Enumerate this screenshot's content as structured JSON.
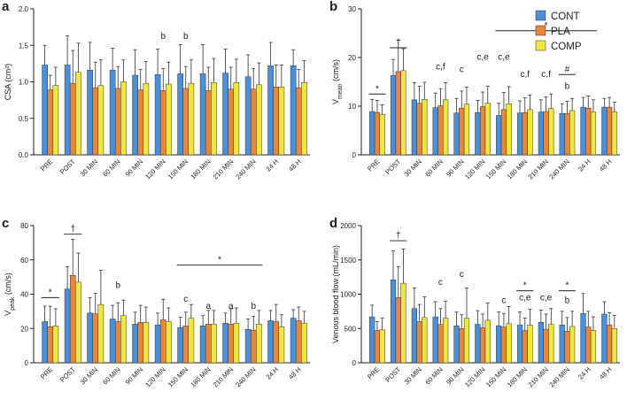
{
  "chart_data": [
    {
      "type": "bar",
      "panel": "a",
      "ylabel": {
        "text": "CSA (cm²)"
      },
      "categories": [
        "PRE",
        "POST",
        "30 MIN",
        "60 MIN",
        "90 MIN",
        "120 MIN",
        "150 MIN",
        "180 MIN",
        "210 MIN",
        "240 MIN",
        "24 H",
        "48 H"
      ],
      "ylim": [
        0,
        2
      ],
      "yticks": [
        {
          "value": 0,
          "label": "0.0"
        },
        {
          "value": 0.5,
          "label": "0.5"
        },
        {
          "value": 1,
          "label": "1.0"
        },
        {
          "value": 1.5,
          "label": "1.5"
        },
        {
          "value": 2,
          "label": "2.0"
        }
      ],
      "series": [
        {
          "name": "CONT",
          "color": "#4a90d9",
          "values": [
            1.23,
            1.23,
            1.16,
            1.16,
            1.09,
            1.1,
            1.11,
            1.11,
            1.12,
            1.07,
            1.22,
            1.22
          ],
          "error": [
            0.27,
            0.4,
            0.38,
            0.3,
            0.35,
            0.35,
            0.4,
            0.4,
            0.33,
            0.3,
            0.32,
            0.22
          ]
        },
        {
          "name": "PLA",
          "color": "#e8863a",
          "values": [
            0.89,
            0.98,
            0.92,
            0.91,
            0.89,
            0.88,
            0.91,
            0.88,
            0.9,
            0.9,
            0.93,
            0.92
          ],
          "error": [
            0.2,
            0.45,
            0.35,
            0.3,
            0.28,
            0.3,
            0.3,
            0.32,
            0.3,
            0.28,
            0.3,
            0.25
          ]
        },
        {
          "name": "COMP",
          "color": "#f0e640",
          "values": [
            0.95,
            1.13,
            0.95,
            1.0,
            0.98,
            0.97,
            0.98,
            0.99,
            0.99,
            0.96,
            0.93,
            0.99
          ],
          "error": [
            0.25,
            0.4,
            0.35,
            0.3,
            0.3,
            0.3,
            0.32,
            0.33,
            0.32,
            0.3,
            0.3,
            0.3
          ]
        }
      ],
      "annotations": [
        "b",
        "b"
      ]
    },
    {
      "type": "bar",
      "panel": "b",
      "ylabel": {
        "text": "V",
        "sub": "mean",
        "suffix": " (cm/s)"
      },
      "legend": "upper right",
      "categories": [
        "PRE",
        "POST",
        "30 MIN",
        "60 MIN",
        "90 MIN",
        "120 MIN",
        "150 MIN",
        "180 MIN",
        "210 MIN",
        "240 MIN",
        "24 H",
        "48 H"
      ],
      "ylim": [
        0,
        30
      ],
      "yticks": [
        0,
        10,
        20,
        30
      ],
      "series": [
        {
          "name": "CONT",
          "color": "#4a90d9",
          "values": [
            8.9,
            16.3,
            11.3,
            9.7,
            8.6,
            8.7,
            8.1,
            8.6,
            8.8,
            8.5,
            9.8,
            9.8
          ],
          "error": [
            2.5,
            3.3,
            3.5,
            3,
            3,
            2.5,
            2.5,
            2.5,
            2.5,
            2,
            2,
            1.8
          ]
        },
        {
          "name": "PLA",
          "color": "#e8863a",
          "values": [
            8.7,
            17.1,
            10.6,
            10.1,
            9.6,
            9.9,
            9.3,
            8.7,
            8.9,
            8.5,
            9.6,
            9.8
          ],
          "error": [
            2.5,
            6.5,
            3.5,
            3.5,
            3.5,
            3,
            3.5,
            3,
            3,
            2.5,
            2.5,
            2
          ]
        },
        {
          "name": "COMP",
          "color": "#f0e640",
          "values": [
            8.3,
            17.3,
            11.4,
            11.3,
            10.4,
            10.6,
            10.5,
            9.3,
            9.5,
            9.1,
            8.8,
            8.8
          ],
          "error": [
            2,
            4.5,
            3.5,
            3.5,
            3.5,
            3.5,
            3.5,
            3,
            3,
            2.5,
            2.5,
            2
          ]
        }
      ],
      "annotations": [
        "*",
        "†",
        "c,f",
        "c",
        "c,e",
        "c,e",
        "c,f",
        "c,f",
        "b",
        "#",
        "*"
      ]
    },
    {
      "type": "bar",
      "panel": "c",
      "ylabel": {
        "text": "V",
        "sub": "peak",
        "suffix": " (cm/s)"
      },
      "categories": [
        "PRE",
        "POST",
        "30 MIN",
        "60 MIN",
        "90 MIN",
        "120 MIN",
        "150 MIN",
        "180 MIN",
        "210 MIN",
        "240 MIN",
        "24 H",
        "48 H"
      ],
      "ylim": [
        0,
        80
      ],
      "yticks": [
        0,
        20,
        40,
        60,
        80
      ],
      "series": [
        {
          "name": "CONT",
          "color": "#4a90d9",
          "values": [
            24,
            43,
            29,
            25.5,
            22.5,
            22,
            20.5,
            21.5,
            23,
            19.5,
            24.5,
            26
          ],
          "error": [
            9,
            13,
            9,
            8,
            7,
            7,
            6,
            6,
            6,
            6,
            6,
            5
          ]
        },
        {
          "name": "PLA",
          "color": "#e8863a",
          "values": [
            21,
            51,
            28.5,
            24,
            23.5,
            25,
            21.5,
            22.5,
            22.5,
            19,
            24,
            24.5
          ],
          "error": [
            12,
            21,
            12,
            11,
            10,
            12,
            8,
            8,
            9,
            8,
            10,
            8
          ]
        },
        {
          "name": "COMP",
          "color": "#f0e640",
          "values": [
            21.5,
            47,
            34,
            27.5,
            23.5,
            24,
            26,
            22.5,
            23,
            22.5,
            21,
            23
          ],
          "error": [
            10,
            17,
            20,
            9,
            9,
            8,
            8,
            8,
            9,
            8,
            7,
            7
          ]
        }
      ],
      "annotations": [
        "*",
        "†",
        "b",
        "c",
        "a",
        "a",
        "b",
        "*"
      ]
    },
    {
      "type": "bar",
      "panel": "d",
      "ylabel": {
        "text": "Venous blood flow (mL/min)"
      },
      "categories": [
        "PRE",
        "POST",
        "30 MIN",
        "60 MIN",
        "90 MIN",
        "120 MIN",
        "150 MIN",
        "180 MIN",
        "210 MIN",
        "240 MIN",
        "24 H",
        "48 H"
      ],
      "ylim": [
        0,
        2000
      ],
      "yticks": [
        0,
        500,
        1000,
        1500,
        2000
      ],
      "series": [
        {
          "name": "CONT",
          "color": "#4a90d9",
          "values": [
            670,
            1210,
            790,
            670,
            540,
            560,
            540,
            550,
            590,
            550,
            720,
            710
          ],
          "error": [
            170,
            420,
            300,
            220,
            200,
            200,
            200,
            190,
            180,
            200,
            290,
            180
          ]
        },
        {
          "name": "PLA",
          "color": "#e8863a",
          "values": [
            470,
            950,
            600,
            560,
            500,
            510,
            520,
            470,
            490,
            460,
            520,
            550
          ],
          "error": [
            130,
            450,
            250,
            230,
            200,
            200,
            200,
            180,
            220,
            200,
            230,
            180
          ]
        },
        {
          "name": "COMP",
          "color": "#f0e640",
          "values": [
            480,
            1160,
            660,
            650,
            650,
            620,
            570,
            550,
            560,
            530,
            470,
            500
          ],
          "error": [
            170,
            500,
            300,
            250,
            440,
            250,
            250,
            230,
            230,
            220,
            200,
            190
          ]
        }
      ],
      "annotations": [
        "†",
        "c",
        "c",
        "c",
        "*",
        "c,e",
        "c,e",
        "*",
        "b"
      ]
    }
  ]
}
